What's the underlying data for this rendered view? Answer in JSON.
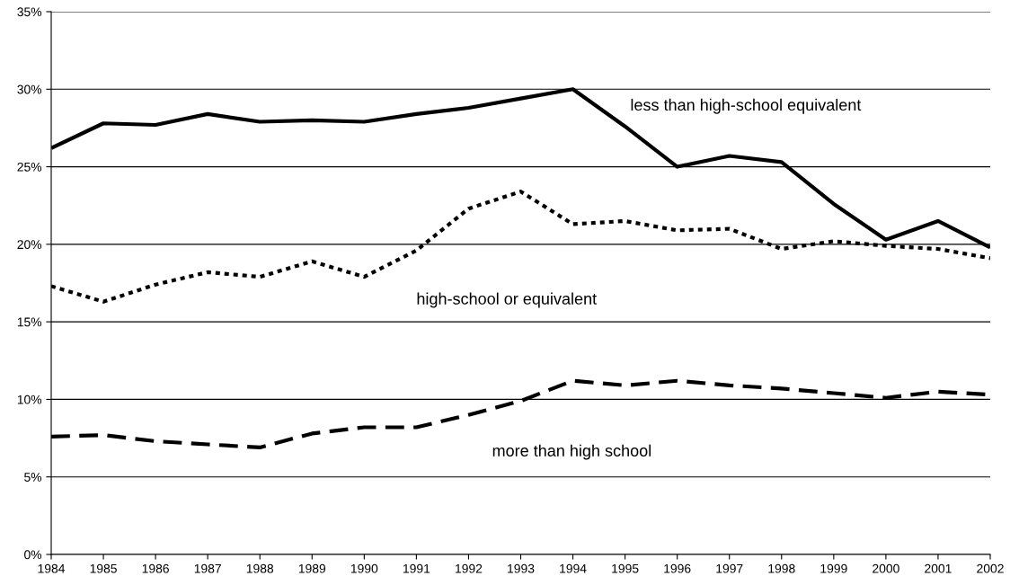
{
  "chart_data": {
    "type": "line",
    "categories": [
      "1984",
      "1985",
      "1986",
      "1987",
      "1988",
      "1989",
      "1990",
      "1991",
      "1992",
      "1993",
      "1994",
      "1995",
      "1996",
      "1997",
      "1998",
      "1999",
      "2000",
      "2001",
      "2002"
    ],
    "series": [
      {
        "name": "less than high-school equivalent",
        "color": "#000000",
        "line_style": "solid",
        "values": [
          26.2,
          27.8,
          27.7,
          28.4,
          27.9,
          28.0,
          27.9,
          28.4,
          28.8,
          29.4,
          30.0,
          27.6,
          25.0,
          25.7,
          25.3,
          22.6,
          20.3,
          21.5,
          19.8
        ]
      },
      {
        "name": "high-school or equivalent",
        "color": "#000000",
        "line_style": "dotted",
        "values": [
          17.3,
          16.3,
          17.4,
          18.2,
          17.9,
          18.9,
          17.9,
          19.6,
          22.3,
          23.4,
          21.3,
          21.5,
          20.9,
          21.0,
          19.7,
          20.2,
          19.9,
          19.7,
          19.1
        ]
      },
      {
        "name": "more than high school",
        "color": "#000000",
        "line_style": "dashed",
        "values": [
          7.6,
          7.7,
          7.3,
          7.1,
          6.9,
          7.8,
          8.2,
          8.2,
          9.0,
          9.9,
          11.2,
          10.9,
          11.2,
          10.9,
          10.7,
          10.4,
          10.1,
          10.5,
          10.3
        ]
      }
    ],
    "ylim": [
      0,
      35
    ],
    "yticks": [
      {
        "value": 0,
        "label": "0%"
      },
      {
        "value": 5,
        "label": "5%"
      },
      {
        "value": 10,
        "label": "10%"
      },
      {
        "value": 15,
        "label": "15%"
      },
      {
        "value": 20,
        "label": "20%"
      },
      {
        "value": 25,
        "label": "25%"
      },
      {
        "value": 30,
        "label": "30%"
      },
      {
        "value": 35,
        "label": "35%"
      }
    ],
    "grid": "y",
    "marker": "none",
    "legend": false
  }
}
